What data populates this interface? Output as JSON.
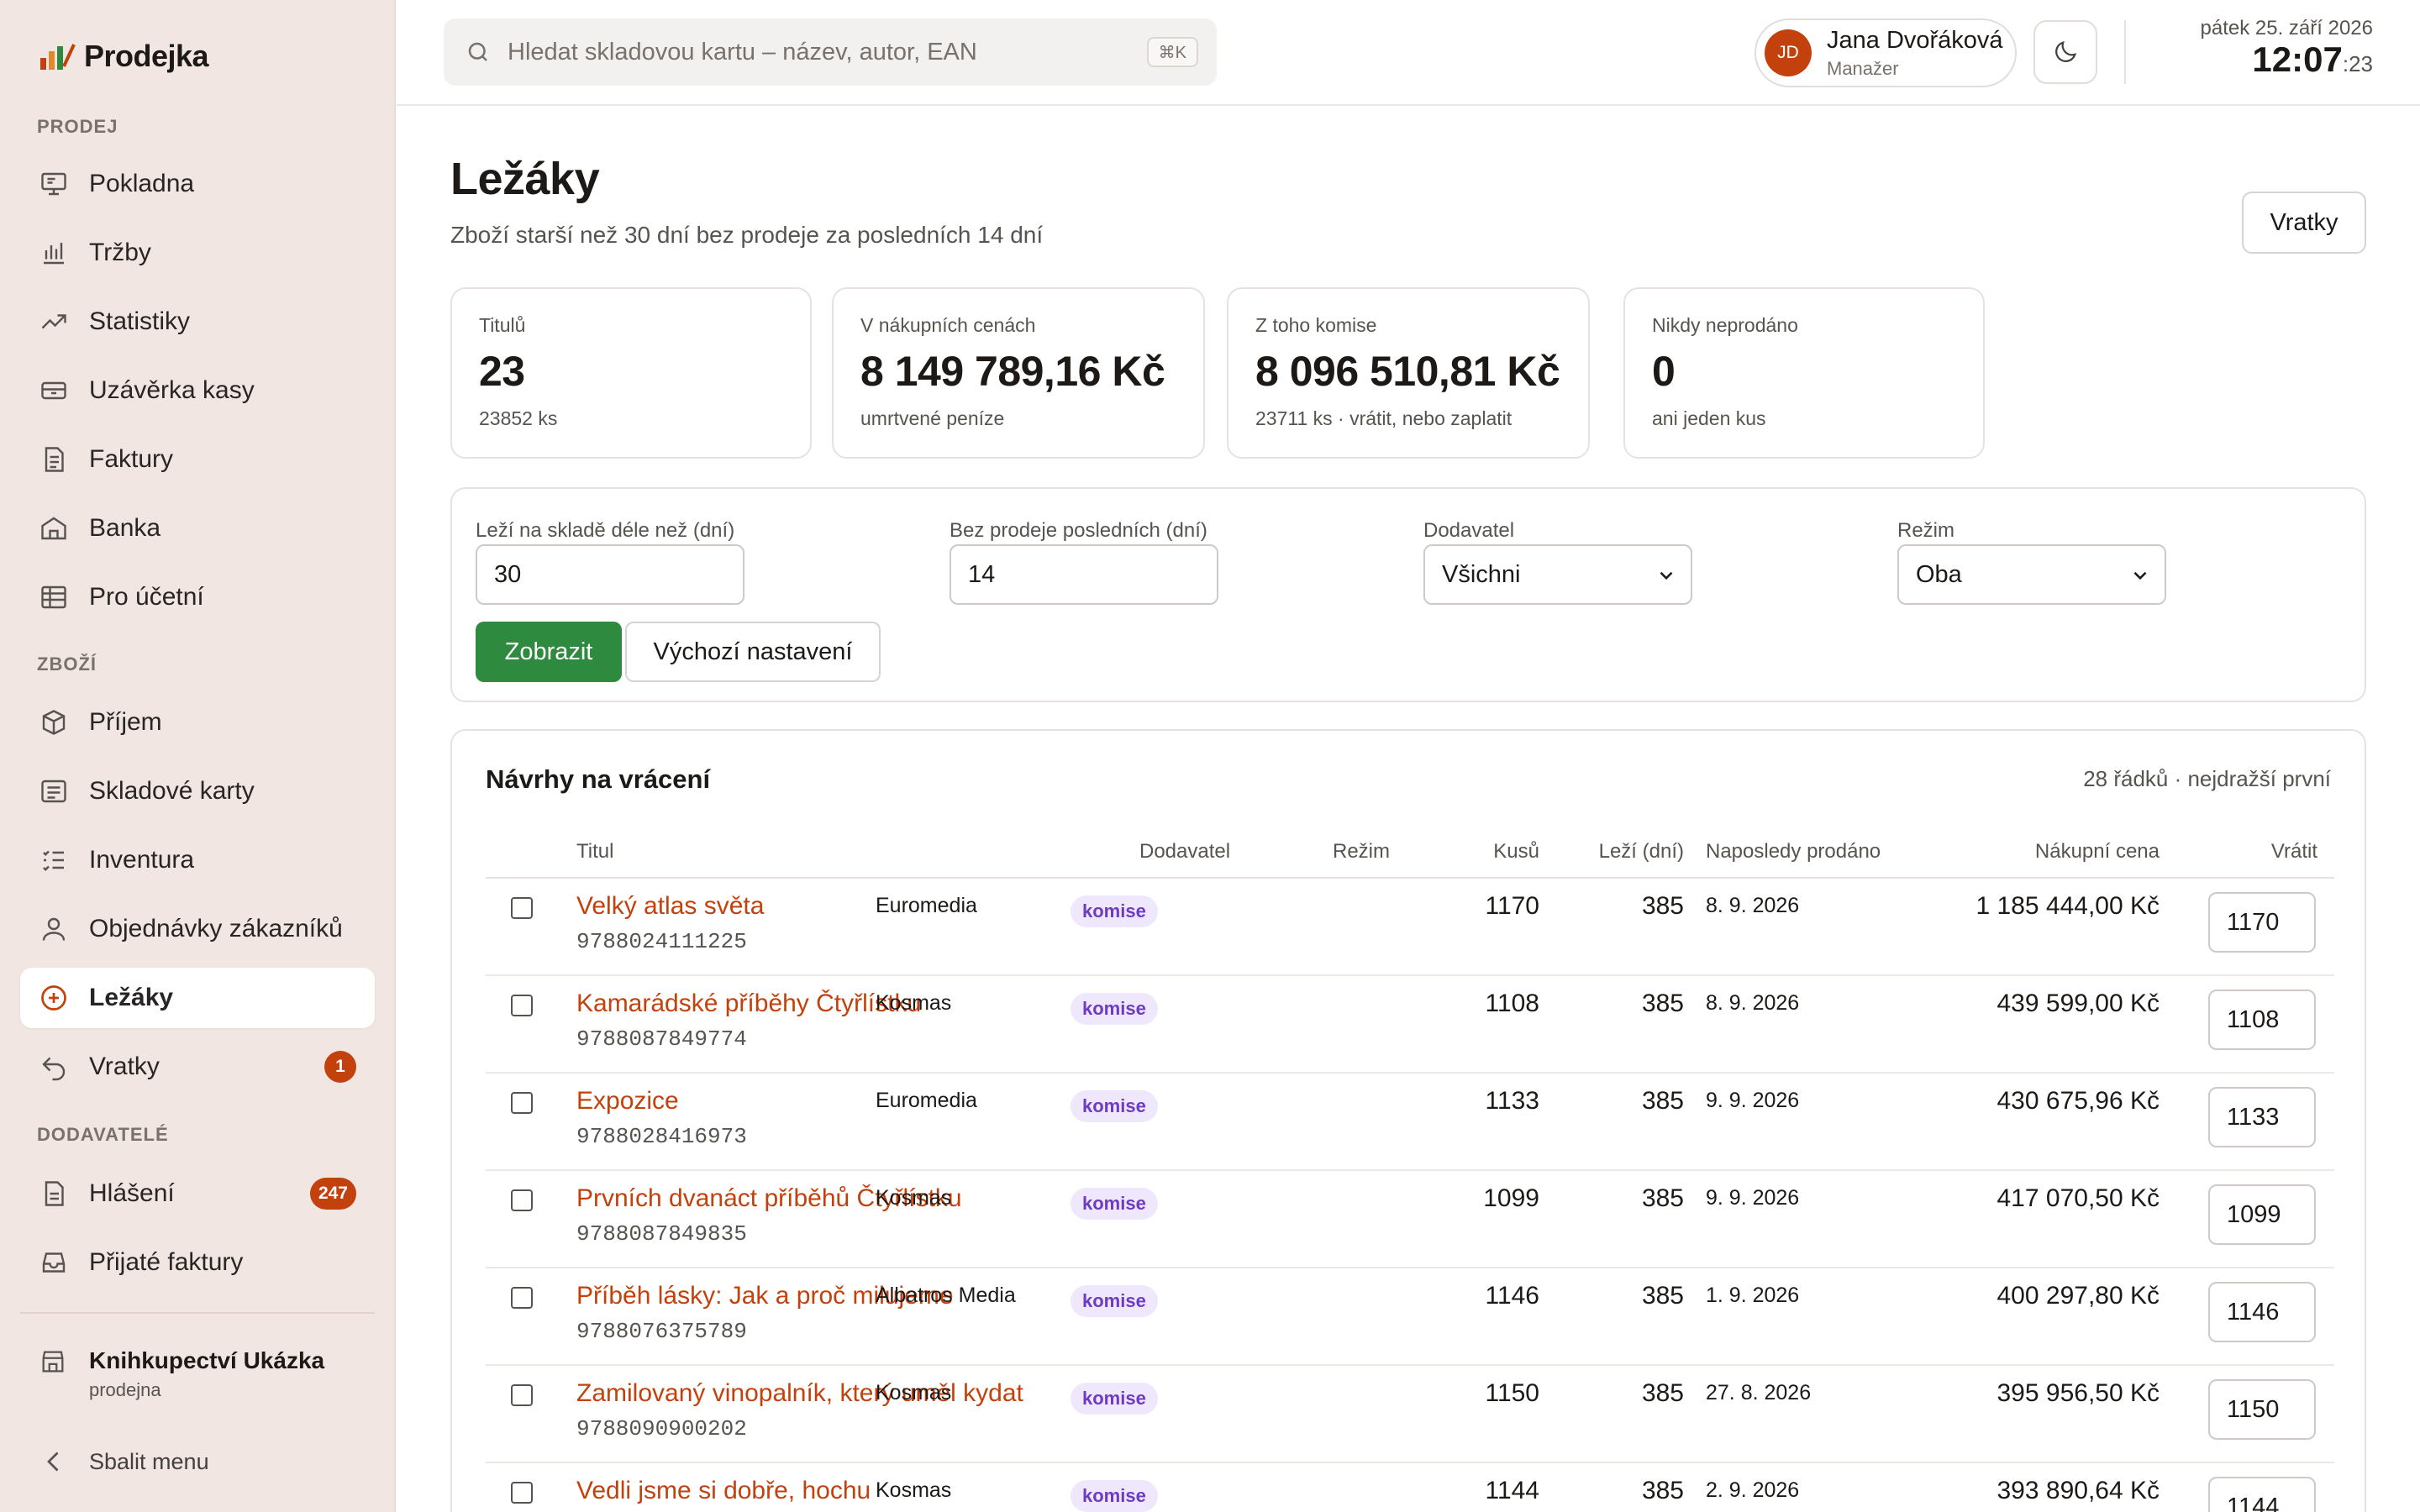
{
  "app": {
    "name": "Prodejka"
  },
  "sidebar": {
    "sections": [
      {
        "title": "PRODEJ",
        "items": [
          {
            "label": "Pokladna",
            "icon": "monitor-icon"
          },
          {
            "label": "Tržby",
            "icon": "bar-chart-icon"
          },
          {
            "label": "Statistiky",
            "icon": "trend-icon"
          },
          {
            "label": "Uzávěrka kasy",
            "icon": "cash-drawer-icon"
          },
          {
            "label": "Faktury",
            "icon": "document-icon"
          },
          {
            "label": "Banka",
            "icon": "bank-icon"
          },
          {
            "label": "Pro účetní",
            "icon": "table-icon"
          }
        ]
      },
      {
        "title": "ZBOŽÍ",
        "items": [
          {
            "label": "Příjem",
            "icon": "box-icon"
          },
          {
            "label": "Skladové karty",
            "icon": "card-icon"
          },
          {
            "label": "Inventura",
            "icon": "list-check-icon"
          },
          {
            "label": "Objednávky zákazníků",
            "icon": "user-icon"
          },
          {
            "label": "Ležáky",
            "icon": "plus-circle-icon",
            "active": true
          },
          {
            "label": "Vratky",
            "icon": "return-icon",
            "badge": "1"
          }
        ]
      },
      {
        "title": "DODAVATELÉ",
        "items": [
          {
            "label": "Hlášení",
            "icon": "report-icon",
            "badge": "247"
          },
          {
            "label": "Přijaté faktury",
            "icon": "inbox-icon"
          }
        ]
      }
    ],
    "store": {
      "name": "Knihkupectví Ukázka",
      "type": "prodejna"
    },
    "collapse": "Sbalit menu"
  },
  "topbar": {
    "search_placeholder": "Hledat skladovou kartu – název, autor, EAN",
    "shortcut": "⌘K",
    "user": {
      "initials": "JD",
      "name": "Jana Dvořáková",
      "role": "Manažer"
    },
    "date": "pátek 25. září 2026",
    "time": "12:07",
    "seconds": ":23"
  },
  "page": {
    "title": "Ležáky",
    "subtitle": "Zboží starší než 30 dní bez prodeje za posledních 14 dní",
    "returns_button": "Vratky"
  },
  "stats": [
    {
      "label": "Titulů",
      "value": "23",
      "sub": "23852 ks"
    },
    {
      "label": "V nákupních cenách",
      "value": "8 149 789,16 Kč",
      "sub": "umrtvené peníze"
    },
    {
      "label": "Z toho komise",
      "value": "8 096 510,81 Kč",
      "sub": "23711 ks · vrátit, nebo zaplatit"
    },
    {
      "label": "Nikdy neprodáno",
      "value": "0",
      "sub": "ani jeden kus"
    }
  ],
  "filters": {
    "older_label": "Leží na skladě déle než (dní)",
    "older_value": "30",
    "nosale_label": "Bez prodeje posledních (dní)",
    "nosale_value": "14",
    "supplier_label": "Dodavatel",
    "supplier_value": "Všichni",
    "mode_label": "Režim",
    "mode_value": "Oba",
    "show_button": "Zobrazit",
    "reset_button": "Výchozí nastavení"
  },
  "table": {
    "title": "Návrhy na vrácení",
    "meta": "28 řádků · nejdražší první",
    "columns": {
      "title": "Titul",
      "supplier": "Dodavatel",
      "mode": "Režim",
      "qty": "Kusů",
      "days": "Leží (dní)",
      "last_sold": "Naposledy prodáno",
      "price": "Nákupní cena",
      "return": "Vrátit"
    },
    "rows": [
      {
        "title": "Velký atlas světa",
        "ean": "9788024111225",
        "supplier": "Euromedia",
        "mode": "komise",
        "qty": "1170",
        "days": "385",
        "last_sold": "8. 9. 2026",
        "price": "1 185 444,00 Kč",
        "return": "1170"
      },
      {
        "title": "Kamarádské příběhy Čtyřlístku",
        "ean": "9788087849774",
        "supplier": "Kosmas",
        "mode": "komise",
        "qty": "1108",
        "days": "385",
        "last_sold": "8. 9. 2026",
        "price": "439 599,00 Kč",
        "return": "1108"
      },
      {
        "title": "Expozice",
        "ean": "9788028416973",
        "supplier": "Euromedia",
        "mode": "komise",
        "qty": "1133",
        "days": "385",
        "last_sold": "9. 9. 2026",
        "price": "430 675,96 Kč",
        "return": "1133"
      },
      {
        "title": "Prvních dvanáct příběhů Čtyřlístku",
        "ean": "9788087849835",
        "supplier": "Kosmas",
        "mode": "komise",
        "qty": "1099",
        "days": "385",
        "last_sold": "9. 9. 2026",
        "price": "417 070,50 Kč",
        "return": "1099"
      },
      {
        "title": "Příběh lásky: Jak a proč milujeme",
        "ean": "9788076375789",
        "supplier": "Albatros Media",
        "mode": "komise",
        "qty": "1146",
        "days": "385",
        "last_sold": "1. 9. 2026",
        "price": "400 297,80 Kč",
        "return": "1146"
      },
      {
        "title": "Zamilovaný vinopalník, který uměl kydat",
        "ean": "9788090900202",
        "supplier": "Kosmas",
        "mode": "komise",
        "qty": "1150",
        "days": "385",
        "last_sold": "27. 8. 2026",
        "price": "395 956,50 Kč",
        "return": "1150"
      },
      {
        "title": "Vedli jsme si dobře, hochu",
        "ean": "",
        "supplier": "Kosmas",
        "mode": "komise",
        "qty": "1144",
        "days": "385",
        "last_sold": "2. 9. 2026",
        "price": "393 890,64 Kč",
        "return": "1144"
      }
    ]
  }
}
